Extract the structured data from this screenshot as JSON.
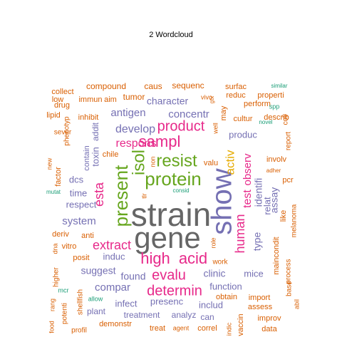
{
  "title": "2  Wordcloud",
  "palette": {
    "orange": "#D95F02",
    "purple": "#7570B3",
    "magenta": "#E7298A",
    "green": "#66A61E",
    "gold": "#E6AB02",
    "brown": "#A6761D",
    "grey": "#666666",
    "teal": "#1B9E77"
  },
  "chart_data": {
    "type": "wordcloud",
    "words": [
      {
        "text": "strain",
        "color": "grey"
      },
      {
        "text": "gene",
        "color": "grey"
      },
      {
        "text": "show",
        "color": "purple"
      },
      {
        "text": "protein",
        "color": "green"
      },
      {
        "text": "isol",
        "color": "green"
      },
      {
        "text": "present",
        "color": "green"
      },
      {
        "text": "resist",
        "color": "green"
      },
      {
        "text": "sampl",
        "color": "magenta"
      },
      {
        "text": "high",
        "color": "magenta"
      },
      {
        "text": "acid",
        "color": "magenta"
      },
      {
        "text": "product",
        "color": "magenta"
      },
      {
        "text": "determin",
        "color": "magenta"
      },
      {
        "text": "evalu",
        "color": "magenta"
      },
      {
        "text": "extract",
        "color": "magenta"
      },
      {
        "text": "respons",
        "color": "magenta"
      },
      {
        "text": "esta",
        "color": "magenta"
      },
      {
        "text": "human",
        "color": "magenta"
      },
      {
        "text": "activ",
        "color": "gold"
      },
      {
        "text": "test",
        "color": "magenta"
      },
      {
        "text": "observ",
        "color": "magenta"
      },
      {
        "text": "identifi",
        "color": "purple"
      },
      {
        "text": "type",
        "color": "purple"
      },
      {
        "text": "assay",
        "color": "purple"
      },
      {
        "text": "relat",
        "color": "purple"
      },
      {
        "text": "develop",
        "color": "purple"
      },
      {
        "text": "antigen",
        "color": "purple"
      },
      {
        "text": "concentr",
        "color": "purple"
      },
      {
        "text": "character",
        "color": "purple"
      },
      {
        "text": "system",
        "color": "purple"
      },
      {
        "text": "suggest",
        "color": "purple"
      },
      {
        "text": "compar",
        "color": "purple"
      },
      {
        "text": "found",
        "color": "purple"
      },
      {
        "text": "clinic",
        "color": "purple"
      },
      {
        "text": "function",
        "color": "purple"
      },
      {
        "text": "presenc",
        "color": "purple"
      },
      {
        "text": "includ",
        "color": "purple"
      },
      {
        "text": "infect",
        "color": "purple"
      },
      {
        "text": "induc",
        "color": "purple"
      },
      {
        "text": "produc",
        "color": "purple"
      },
      {
        "text": "mice",
        "color": "purple"
      },
      {
        "text": "time",
        "color": "purple"
      },
      {
        "text": "respect",
        "color": "purple"
      },
      {
        "text": "dcs",
        "color": "purple"
      },
      {
        "text": "toxin",
        "color": "purple"
      },
      {
        "text": "addit",
        "color": "purple"
      },
      {
        "text": "contain",
        "color": "purple"
      },
      {
        "text": "treatment",
        "color": "purple"
      },
      {
        "text": "analyz",
        "color": "purple"
      },
      {
        "text": "can",
        "color": "purple"
      },
      {
        "text": "plant",
        "color": "purple"
      },
      {
        "text": "compound",
        "color": "orange"
      },
      {
        "text": "caus",
        "color": "orange"
      },
      {
        "text": "sequenc",
        "color": "orange"
      },
      {
        "text": "surfac",
        "color": "orange"
      },
      {
        "text": "tumor",
        "color": "orange"
      },
      {
        "text": "collect",
        "color": "orange"
      },
      {
        "text": "low",
        "color": "orange"
      },
      {
        "text": "immun",
        "color": "orange"
      },
      {
        "text": "aim",
        "color": "orange"
      },
      {
        "text": "reduc",
        "color": "orange"
      },
      {
        "text": "perform",
        "color": "orange"
      },
      {
        "text": "properti",
        "color": "orange"
      },
      {
        "text": "lipid",
        "color": "orange"
      },
      {
        "text": "drug",
        "color": "orange"
      },
      {
        "text": "inhibit",
        "color": "orange"
      },
      {
        "text": "cultur",
        "color": "orange"
      },
      {
        "text": "describ",
        "color": "orange"
      },
      {
        "text": "sever",
        "color": "orange"
      },
      {
        "text": "phenotyp",
        "color": "orange"
      },
      {
        "text": "factor",
        "color": "orange"
      },
      {
        "text": "new",
        "color": "orange"
      },
      {
        "text": "chile",
        "color": "orange"
      },
      {
        "text": "valu",
        "color": "orange"
      },
      {
        "text": "involv",
        "color": "orange"
      },
      {
        "text": "pcr",
        "color": "orange"
      },
      {
        "text": "like",
        "color": "orange"
      },
      {
        "text": "melanoma",
        "color": "orange"
      },
      {
        "text": "anti",
        "color": "orange"
      },
      {
        "text": "deriv",
        "color": "orange"
      },
      {
        "text": "vitro",
        "color": "orange"
      },
      {
        "text": "posit",
        "color": "orange"
      },
      {
        "text": "work",
        "color": "orange"
      },
      {
        "text": "maincondit",
        "color": "orange"
      },
      {
        "text": "process",
        "color": "orange"
      },
      {
        "text": "base",
        "color": "orange"
      },
      {
        "text": "obtain",
        "color": "orange"
      },
      {
        "text": "import",
        "color": "orange"
      },
      {
        "text": "assess",
        "color": "orange"
      },
      {
        "text": "improv",
        "color": "orange"
      },
      {
        "text": "data",
        "color": "orange"
      },
      {
        "text": "correl",
        "color": "orange"
      },
      {
        "text": "treat",
        "color": "orange"
      },
      {
        "text": "demonstr",
        "color": "orange"
      },
      {
        "text": "profil",
        "color": "orange"
      },
      {
        "text": "potenti",
        "color": "orange"
      },
      {
        "text": "shellfish",
        "color": "orange"
      },
      {
        "text": "higher",
        "color": "orange"
      },
      {
        "text": "dna",
        "color": "orange"
      },
      {
        "text": "food",
        "color": "orange"
      },
      {
        "text": "rang",
        "color": "orange"
      },
      {
        "text": "vaccin",
        "color": "orange"
      },
      {
        "text": "indic",
        "color": "orange"
      },
      {
        "text": "abil",
        "color": "orange"
      },
      {
        "text": "may",
        "color": "orange"
      },
      {
        "text": "report",
        "color": "orange"
      },
      {
        "text": "coli",
        "color": "orange"
      },
      {
        "text": "role",
        "color": "orange"
      },
      {
        "text": "non",
        "color": "orange"
      },
      {
        "text": "vivo",
        "color": "orange"
      },
      {
        "text": "well",
        "color": "orange"
      },
      {
        "text": "gtx",
        "color": "orange"
      },
      {
        "text": "tlr",
        "color": "orange"
      },
      {
        "text": "adher",
        "color": "orange"
      },
      {
        "text": "allow",
        "color": "teal"
      },
      {
        "text": "similar",
        "color": "teal"
      },
      {
        "text": "spp",
        "color": "teal"
      },
      {
        "text": "novel",
        "color": "teal"
      },
      {
        "text": "mutat",
        "color": "teal"
      },
      {
        "text": "consid",
        "color": "teal"
      },
      {
        "text": "mcr",
        "color": "teal"
      },
      {
        "text": "agent",
        "color": "orange"
      }
    ]
  }
}
